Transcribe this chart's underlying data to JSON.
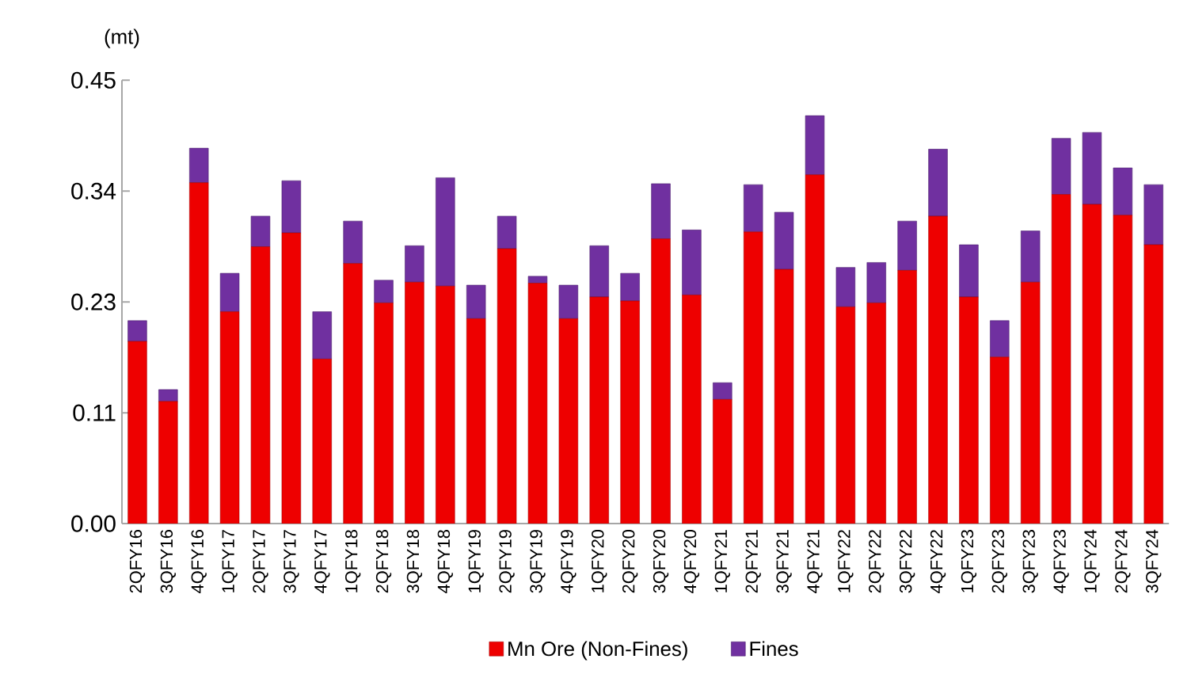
{
  "chart_data": {
    "type": "bar",
    "stacked": true,
    "ylabel": "(mt)",
    "categories": [
      "2QFY16",
      "3QFY16",
      "4QFY16",
      "1QFY17",
      "2QFY17",
      "3QFY17",
      "4QFY17",
      "1QFY18",
      "2QFY18",
      "3QFY18",
      "4QFY18",
      "1QFY19",
      "2QFY19",
      "3QFY19",
      "4QFY19",
      "1QFY20",
      "2QFY20",
      "3QFY20",
      "4QFY20",
      "1QFY21",
      "2QFY21",
      "3QFY21",
      "4QFY21",
      "1QFY22",
      "2QFY22",
      "3QFY22",
      "4QFY22",
      "1QFY23",
      "2QFY23",
      "3QFY23",
      "4QFY23",
      "1QFY24",
      "2QFY24",
      "3QFY24"
    ],
    "series": [
      {
        "name": "Mn Ore (Non-Fines)",
        "color": "#ee0000",
        "values": [
          0.185,
          0.124,
          0.346,
          0.215,
          0.281,
          0.295,
          0.167,
          0.264,
          0.224,
          0.245,
          0.241,
          0.208,
          0.279,
          0.244,
          0.208,
          0.23,
          0.226,
          0.289,
          0.232,
          0.126,
          0.296,
          0.258,
          0.354,
          0.22,
          0.224,
          0.257,
          0.312,
          0.23,
          0.169,
          0.245,
          0.334,
          0.324,
          0.313,
          0.283
        ]
      },
      {
        "name": "Fines",
        "color": "#7030a0",
        "values": [
          0.021,
          0.012,
          0.035,
          0.039,
          0.031,
          0.053,
          0.048,
          0.043,
          0.023,
          0.037,
          0.11,
          0.034,
          0.033,
          0.007,
          0.034,
          0.052,
          0.028,
          0.056,
          0.066,
          0.017,
          0.048,
          0.058,
          0.06,
          0.04,
          0.041,
          0.05,
          0.068,
          0.053,
          0.037,
          0.052,
          0.057,
          0.073,
          0.048,
          0.061
        ]
      }
    ],
    "ylim": [
      0,
      0.45
    ],
    "yticks": [
      {
        "value": 0,
        "label": "0.00"
      },
      {
        "value": 0.1125,
        "label": "0.11"
      },
      {
        "value": 0.225,
        "label": "0.23"
      },
      {
        "value": 0.3375,
        "label": "0.34"
      },
      {
        "value": 0.45,
        "label": "0.45"
      }
    ],
    "grid": false,
    "legend": "bottom"
  }
}
